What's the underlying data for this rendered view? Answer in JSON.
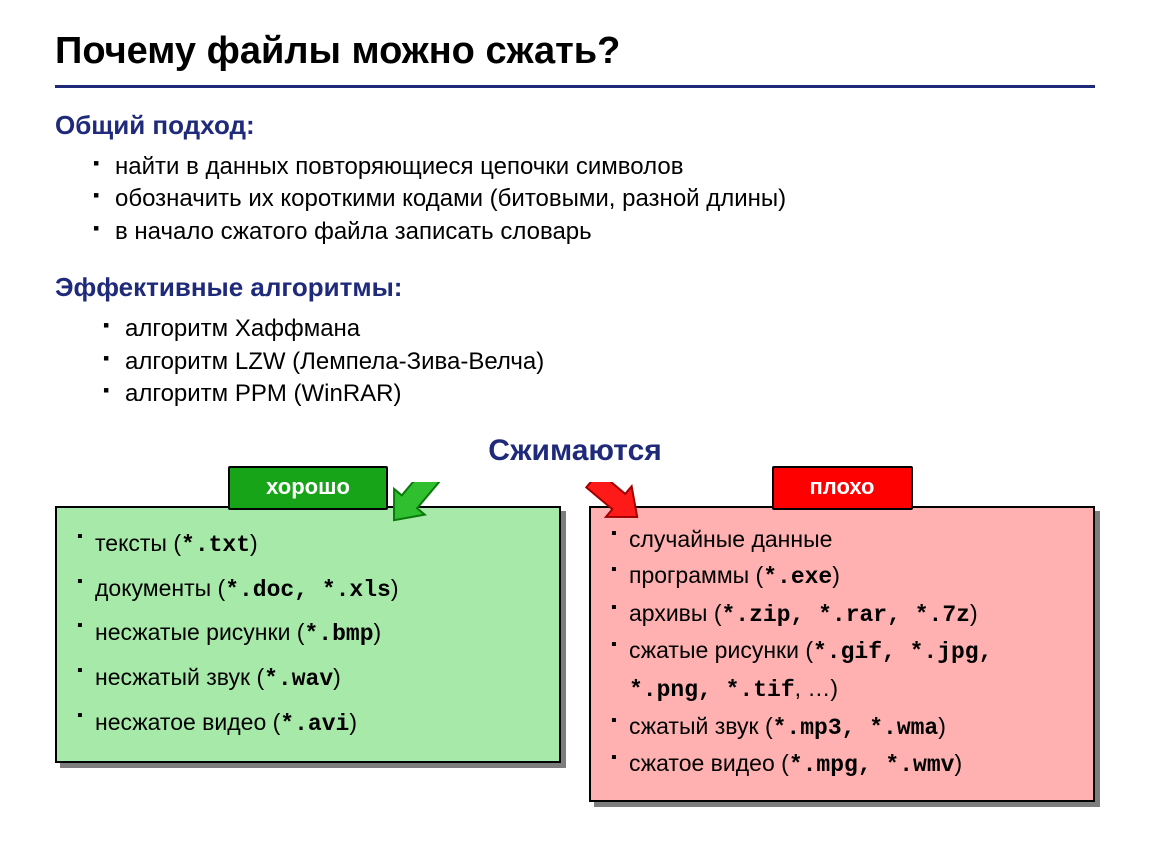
{
  "title": "Почему файлы можно сжать?",
  "colors": {
    "heading": "#1f2a7a",
    "rule": "#1f2a7a",
    "badge_green": "#18a418",
    "badge_red": "#ff0000",
    "panel_green": "#a6e9a8",
    "panel_red": "#ffb0b0",
    "shadow": "#7d7d7d",
    "arrow_green_fill": "#2fbf2f",
    "arrow_green_stroke": "#0a7a0a",
    "arrow_red_fill": "#ff1a1a",
    "arrow_red_stroke": "#a00000"
  },
  "font_sizes": {
    "title": 38,
    "section_head": 26,
    "bullet": 24,
    "middle_label": 30,
    "badge": 22,
    "panel_item": 23
  },
  "section1": {
    "heading": "Общий подход:",
    "items": [
      "найти в данных повторяющиеся цепочки символов",
      "обозначить их короткими кодами (битовыми, разной длины)",
      "в начало сжатого файла записать словарь"
    ]
  },
  "section2": {
    "heading": "Эффективные алгоритмы:",
    "items": [
      "алгоритм Хаффмана",
      "алгоритм LZW (Лемпела-Зива-Велча)",
      "алгоритм PPM (WinRAR)"
    ]
  },
  "middle_label": "Сжимаются",
  "good": {
    "badge": "хорошо",
    "items": [
      {
        "pre": "тексты (",
        "code": "*.txt",
        "post": ")"
      },
      {
        "pre": "документы (",
        "code": "*.doc, *.xls",
        "post": ")"
      },
      {
        "pre": "несжатые рисунки (",
        "code": "*.bmp",
        "post": ")"
      },
      {
        "pre": "несжатый звук (",
        "code": "*.wav",
        "post": ")"
      },
      {
        "pre": "несжатое видео (",
        "code": "*.avi",
        "post": ")"
      }
    ]
  },
  "bad": {
    "badge": "плохо",
    "items": [
      {
        "pre": "случайные данные",
        "code": "",
        "post": ""
      },
      {
        "pre": "программы (",
        "code": "*.exe",
        "post": ")"
      },
      {
        "pre": "архивы (",
        "code": "*.zip, *.rar, *.7z",
        "post": ")"
      },
      {
        "pre": "сжатые рисунки (",
        "code": "*.gif, *.jpg, *.png, *.tif",
        "post": ", …)"
      },
      {
        "pre": "сжатый звук (",
        "code": "*.mp3, *.wma",
        "post": ")"
      },
      {
        "pre": "сжатое видео (",
        "code": "*.mpg, *.wmv",
        "post": ")"
      }
    ]
  }
}
